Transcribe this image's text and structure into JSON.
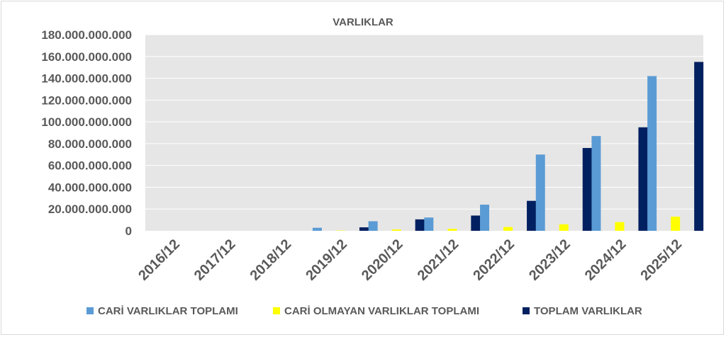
{
  "chart_data": {
    "type": "bar",
    "title": "VARLIKLAR",
    "categories": [
      "2016/12",
      "2017/12",
      "2018/12",
      "2019/12",
      "2020/12",
      "2021/12",
      "2022/12",
      "2023/12",
      "2024/12",
      "2025/12"
    ],
    "series": [
      {
        "name": "CARİ VARLIKLAR TOPLAMI",
        "color": "#5b9bd5",
        "values": [
          0,
          0,
          0,
          2800000000,
          8800000000,
          12200000000,
          24000000000,
          70000000000,
          87000000000,
          142000000000
        ]
      },
      {
        "name": "CARİ OLMAYAN VARLIKLAR TOPLAMI",
        "color": "#ffff00",
        "values": [
          0,
          0,
          0,
          300000000,
          1200000000,
          1800000000,
          3500000000,
          6000000000,
          8000000000,
          13000000000
        ]
      },
      {
        "name": "TOPLAM VARLIKLAR",
        "color": "#002060",
        "values": [
          0,
          0,
          0,
          3200000000,
          10500000000,
          14000000000,
          27500000000,
          76000000000,
          95000000000,
          155000000000
        ]
      }
    ],
    "ylim": [
      0,
      180000000000
    ],
    "ytick_labels": [
      "0",
      "20.000.000.000",
      "40.000.000.000",
      "60.000.000.000",
      "80.000.000.000",
      "100.000.000.000",
      "120.000.000.000",
      "140.000.000.000",
      "160.000.000.000",
      "180.000.000.000"
    ],
    "grid": true,
    "plot_background": "#e7e6e6",
    "gridline_color": "#ffffff",
    "legend_position": "bottom"
  }
}
